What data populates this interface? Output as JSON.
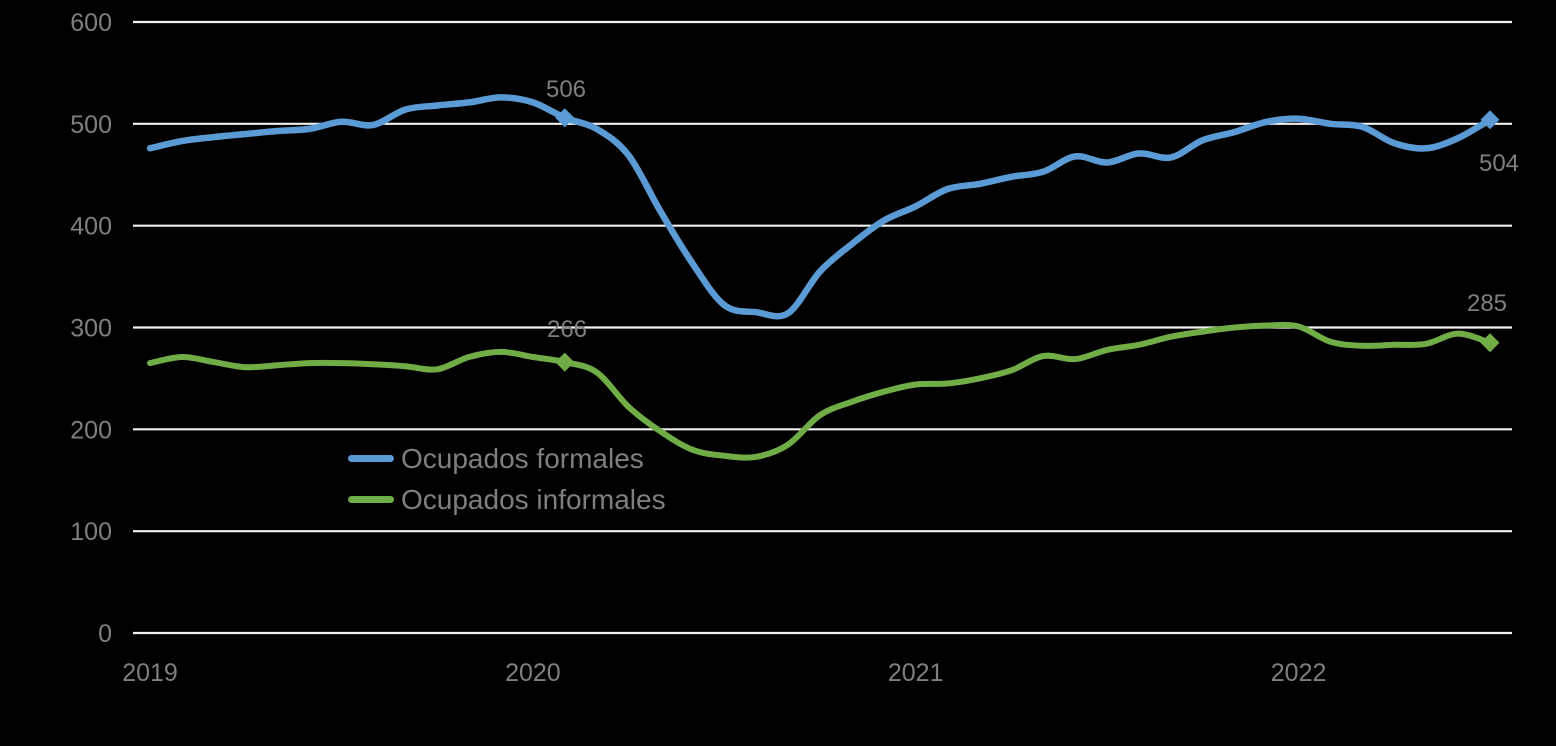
{
  "chart_data": {
    "type": "line",
    "title": "",
    "x_axis": {
      "labels": [
        "2019",
        "2020",
        "2021",
        "2022"
      ],
      "frequency": "monthly",
      "first_point": "2019-01",
      "last_point": "2022-07",
      "points_per_year": 12
    },
    "y_axis": {
      "ticks": [
        600,
        500,
        400,
        300,
        200,
        100,
        0
      ],
      "min": 0,
      "max": 600,
      "step": 100
    },
    "grid": "horizontal",
    "legend_position": "inside-center-left",
    "series": [
      {
        "name": "Ocupados formales",
        "color": "#5B9BD5",
        "values": [
          476,
          483,
          487,
          490,
          493,
          495,
          502,
          499,
          514,
          518,
          521,
          526,
          521,
          506,
          495,
          469,
          414,
          363,
          322,
          315,
          314,
          355,
          382,
          405,
          419,
          436,
          441,
          448,
          453,
          468,
          462,
          471,
          467,
          484,
          492,
          502,
          505,
          500,
          497,
          481,
          476,
          486,
          504
        ]
      },
      {
        "name": "Ocupados informales",
        "color": "#70AD47",
        "values": [
          265,
          271,
          266,
          261,
          263,
          265,
          265,
          264,
          262,
          259,
          271,
          276,
          271,
          266,
          256,
          222,
          198,
          180,
          174,
          173,
          185,
          214,
          227,
          237,
          244,
          245,
          250,
          258,
          272,
          269,
          278,
          283,
          291,
          296,
          300,
          302,
          301,
          286,
          282,
          283,
          284,
          294,
          285
        ]
      }
    ],
    "annotations": [
      {
        "series": 0,
        "index": 13,
        "label": "506",
        "position": "above"
      },
      {
        "series": 0,
        "index": 42,
        "label": "504",
        "position": "below-right"
      },
      {
        "series": 1,
        "index": 13,
        "label": "266",
        "position": "above"
      },
      {
        "series": 1,
        "index": 42,
        "label": "285",
        "position": "above"
      }
    ],
    "colors": {
      "background": "#000000",
      "gridline": "#F0F0F0",
      "axis_text": "#7F7F7F",
      "label_text": "#7F7F7F"
    }
  }
}
